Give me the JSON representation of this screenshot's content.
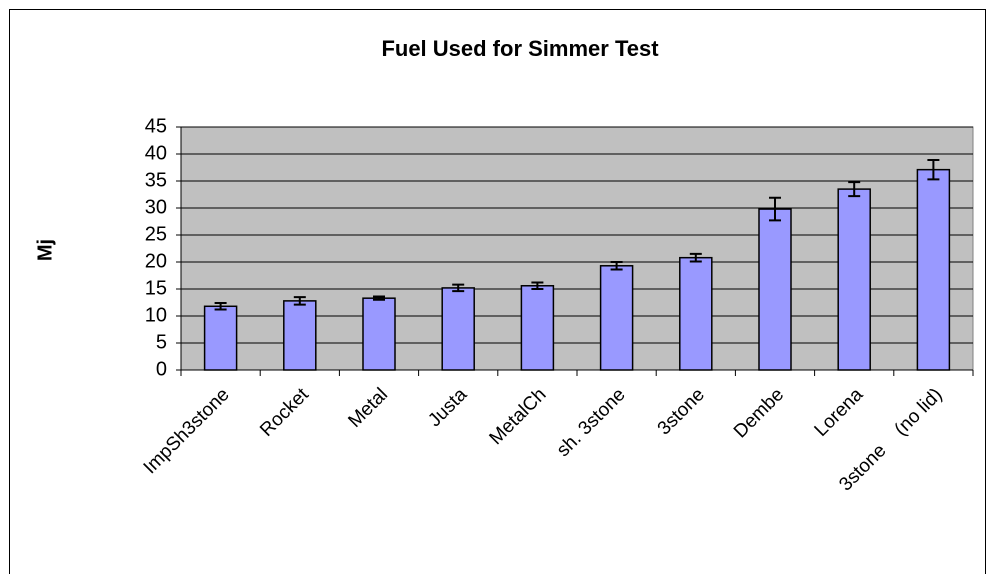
{
  "chart_data": {
    "type": "bar",
    "title": "Fuel Used for Simmer Test",
    "y_label": "Mj",
    "categories": [
      "ImpSh3stone",
      "Rocket",
      "Metal",
      "Justa",
      "MetalCh",
      "sh. 3stone",
      "3stone",
      "Dembe",
      "Lorena",
      "3stone    (no lid)"
    ],
    "values": [
      11.8,
      12.8,
      13.3,
      15.2,
      15.6,
      19.3,
      20.8,
      29.8,
      33.5,
      37.1
    ],
    "errors": [
      0.6,
      0.7,
      0.3,
      0.6,
      0.6,
      0.7,
      0.7,
      2.1,
      1.3,
      1.8
    ],
    "color": "#9999ff",
    "plot_background": "#c0c0c0",
    "ylim": [
      0,
      45
    ],
    "yticks": [
      0,
      5,
      10,
      15,
      20,
      25,
      30,
      35,
      40,
      45
    ],
    "grid": true
  }
}
